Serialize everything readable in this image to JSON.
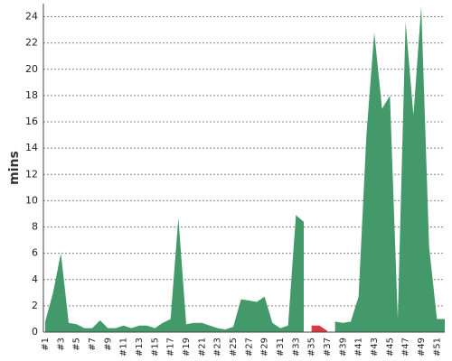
{
  "chart_data": {
    "type": "area",
    "y_label": "mins",
    "categories": [
      "#1",
      null,
      "#3",
      null,
      "#5",
      null,
      "#7",
      null,
      "#9",
      null,
      "#11",
      null,
      "#13",
      null,
      "#15",
      null,
      "#17",
      null,
      "#19",
      null,
      "#21",
      null,
      "#23",
      null,
      "#25",
      null,
      "#27",
      null,
      "#29",
      null,
      "#31",
      null,
      "#33",
      null,
      "#35",
      null,
      "#37",
      null,
      "#39",
      null,
      "#41",
      null,
      "#43",
      null,
      "#45",
      null,
      "#47",
      null,
      "#49",
      null,
      "#51",
      null
    ],
    "series": [
      {
        "color": "#44996a",
        "values": [
          0.8,
          3,
          6,
          0.7,
          0.6,
          0.3,
          0.3,
          0.9,
          0.3,
          0.3,
          0.5,
          0.3,
          0.5,
          0.5,
          0.3,
          0.7,
          1.0,
          8.7,
          0.6,
          0.7,
          0.7,
          0.5,
          0.3,
          0.2,
          0.4,
          2.5,
          2.4,
          2.3,
          2.7,
          0.7,
          0.3,
          0.5,
          8.9,
          8.4,
          null,
          null,
          null,
          0.8,
          0.7,
          0.8,
          2.7,
          15,
          22.8,
          17,
          18,
          1,
          23.6,
          16.5,
          24.8,
          6.5,
          1,
          1
        ]
      },
      {
        "color": "#d93a3f",
        "values": [
          null,
          null,
          null,
          null,
          null,
          null,
          null,
          null,
          null,
          null,
          null,
          null,
          null,
          null,
          null,
          null,
          null,
          null,
          null,
          null,
          null,
          null,
          null,
          null,
          null,
          null,
          null,
          null,
          null,
          null,
          null,
          null,
          null,
          null,
          0.5,
          0.5,
          0.1,
          null,
          null,
          null,
          null,
          null,
          null,
          null,
          null,
          null,
          null,
          null,
          null,
          null,
          null,
          null
        ]
      }
    ],
    "ylim": [
      0,
      25
    ],
    "yticks": [
      0,
      2,
      4,
      6,
      8,
      10,
      12,
      14,
      16,
      18,
      20,
      22,
      24
    ],
    "grid": true
  }
}
